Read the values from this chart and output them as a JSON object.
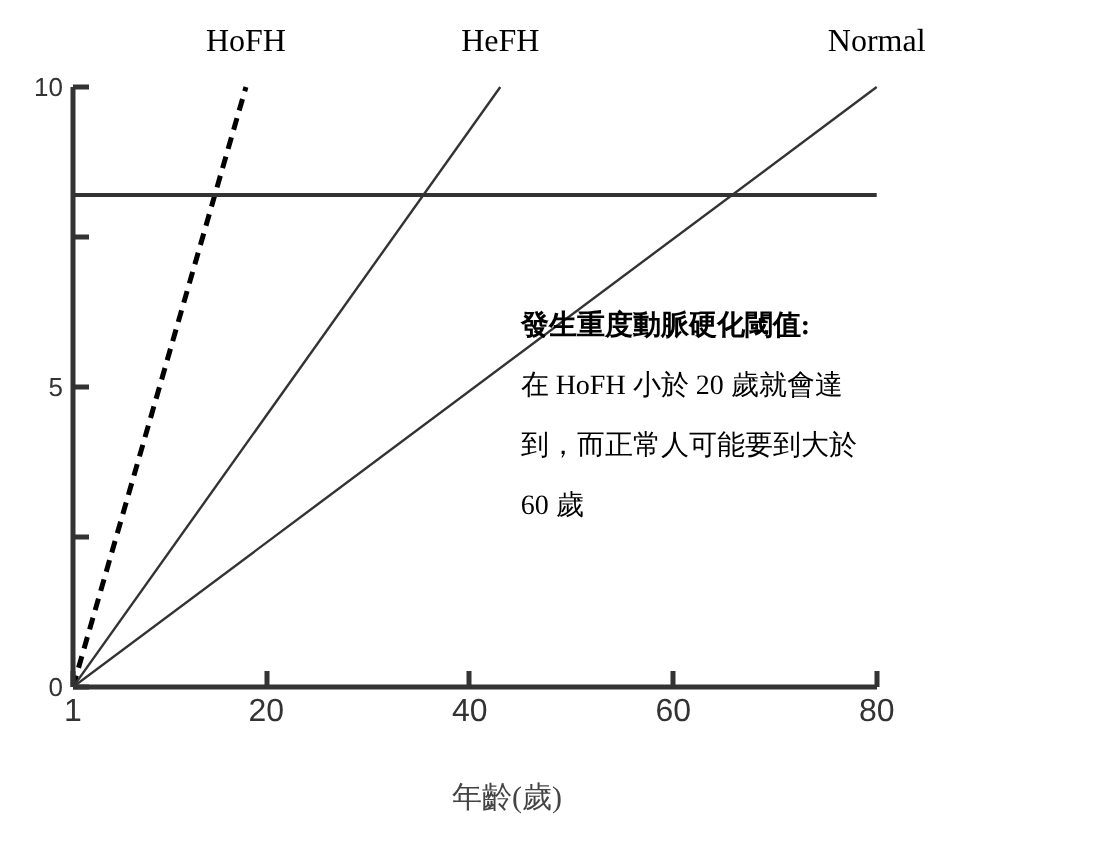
{
  "chart_data": {
    "type": "line",
    "xlabel": "年齡(歲)",
    "series": [
      {
        "name": "HoFH",
        "color": "#000000",
        "line_style": "dashed",
        "x": [
          1,
          18
        ],
        "values": [
          0,
          10
        ]
      },
      {
        "name": "HeFH",
        "color": "#333333",
        "line_style": "solid",
        "x": [
          1,
          43
        ],
        "values": [
          0,
          10
        ]
      },
      {
        "name": "Normal",
        "color": "#333333",
        "line_style": "solid",
        "x": [
          1,
          80
        ],
        "values": [
          0,
          10
        ]
      }
    ],
    "xlim": [
      1,
      80
    ],
    "ylim": [
      0,
      10
    ],
    "xticks": [
      1,
      20,
      40,
      60,
      80
    ],
    "yticks": [
      0,
      {
        "value": 2.5,
        "label": null
      },
      5,
      {
        "value": 7.5,
        "label": null
      },
      10
    ],
    "ref_lines": [
      {
        "axis": "y",
        "value": 8.2,
        "color": "#333333"
      }
    ],
    "annotations": [
      "發生重度動脈硬化閾值:",
      "在 HoFH 小於 20 歲就會達",
      "到，而正常人可能要到大於",
      "60 歲"
    ],
    "grid": false,
    "legend": false,
    "marker": "none"
  }
}
